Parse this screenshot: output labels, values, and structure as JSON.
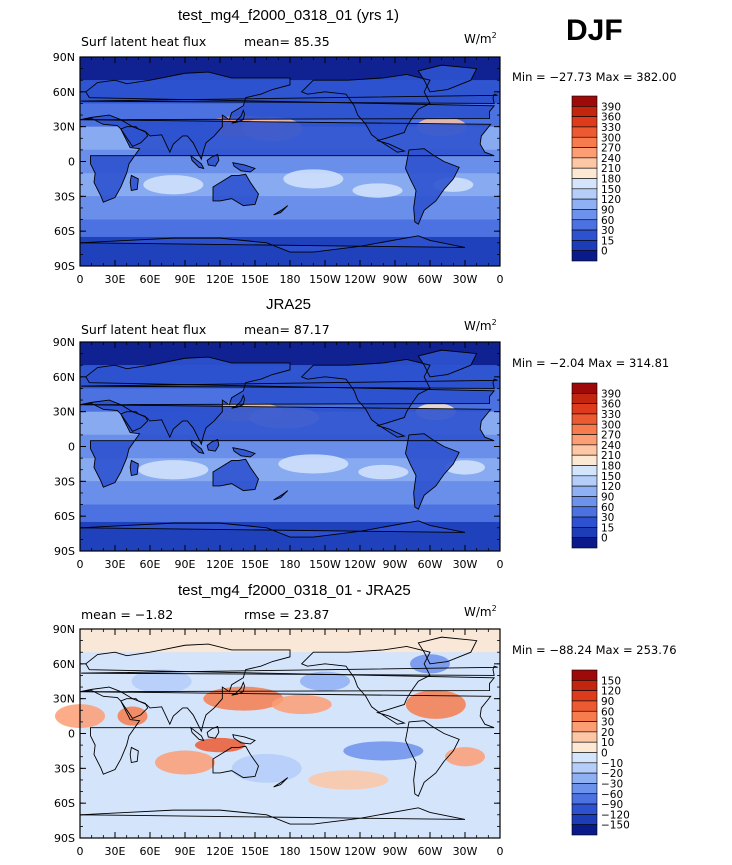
{
  "season": "DJF",
  "units": "W/m",
  "units_sup": "2",
  "lat_labels": [
    "90N",
    "60N",
    "30N",
    "0",
    "30S",
    "60S",
    "90S"
  ],
  "lon_labels": [
    "0",
    "30E",
    "60E",
    "90E",
    "120E",
    "150E",
    "180",
    "150W",
    "120W",
    "90W",
    "60W",
    "30W",
    "0"
  ],
  "panels": [
    {
      "title": "test_mg4_f2000_0318_01 (yrs 1)",
      "left_text": "Surf latent heat flux",
      "stat_text": "mean=  85.35",
      "minmax": "Min = −27.73 Max = 382.00",
      "colorbar_labels": [
        "390",
        "360",
        "330",
        "300",
        "270",
        "240",
        "210",
        "180",
        "150",
        "120",
        "90",
        "60",
        "30",
        "15",
        "0"
      ],
      "colors": [
        "#9e0a0a",
        "#c2260e",
        "#dd3b1c",
        "#ec5a32",
        "#f67c4e",
        "#fb9e74",
        "#fdc6a4",
        "#fde8d4",
        "#d4e4fb",
        "#b4cdf9",
        "#8fb0f3",
        "#6d92ec",
        "#4b72e0",
        "#2e52cf",
        "#1c3cb8",
        "#0a1a8a"
      ]
    },
    {
      "title": "JRA25",
      "left_text": "Surf latent heat flux",
      "stat_text": "mean=  87.17",
      "minmax": "Min =   −2.04 Max = 314.81",
      "colorbar_labels": [
        "390",
        "360",
        "330",
        "300",
        "270",
        "240",
        "210",
        "180",
        "150",
        "120",
        "90",
        "60",
        "30",
        "15",
        "0"
      ],
      "colors": [
        "#9e0a0a",
        "#c2260e",
        "#dd3b1c",
        "#ec5a32",
        "#f67c4e",
        "#fb9e74",
        "#fdc6a4",
        "#fde8d4",
        "#d4e4fb",
        "#b4cdf9",
        "#8fb0f3",
        "#6d92ec",
        "#4b72e0",
        "#2e52cf",
        "#1c3cb8",
        "#0a1a8a"
      ]
    },
    {
      "title": "test_mg4_f2000_0318_01 - JRA25",
      "left_text": "mean =   −1.82",
      "stat_text": "rmse =  23.87",
      "minmax": "Min = −88.24 Max = 253.76",
      "colorbar_labels": [
        "150",
        "120",
        "90",
        "60",
        "30",
        "20",
        "10",
        "0",
        "−10",
        "−20",
        "−30",
        "−60",
        "−90",
        "−120",
        "−150"
      ],
      "colors": [
        "#9e0a0a",
        "#c2260e",
        "#dd3b1c",
        "#ec5a32",
        "#f67c4e",
        "#fb9e74",
        "#fdc6a4",
        "#fde8d4",
        "#d4e4fb",
        "#b4cdf9",
        "#8fb0f3",
        "#6d92ec",
        "#4b72e0",
        "#2e52cf",
        "#1c3cb8",
        "#0a1a8a"
      ]
    }
  ]
}
